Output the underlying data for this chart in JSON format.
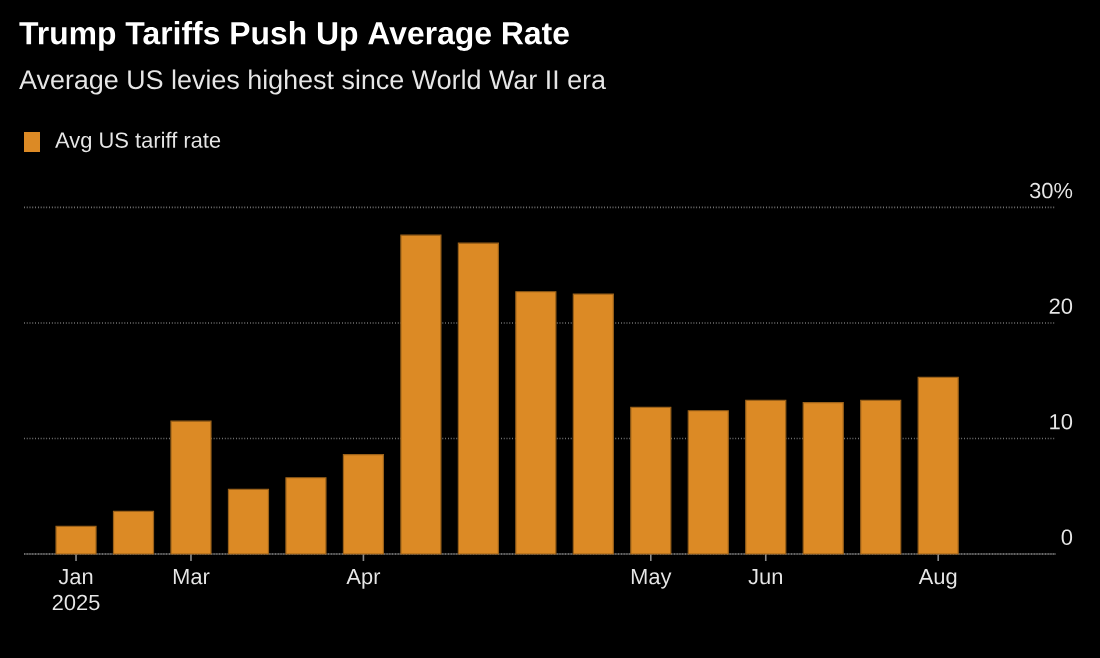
{
  "chart_data": {
    "type": "bar",
    "title": "Trump Tariffs Push Up Average Rate",
    "subtitle": "Average US levies highest since World War II era",
    "categories": [
      "Jan 2025",
      null,
      "Mar",
      null,
      null,
      "Apr",
      null,
      null,
      null,
      null,
      "May",
      null,
      "Jun",
      null,
      null,
      "Aug"
    ],
    "series": [
      {
        "name": "Avg US tariff rate",
        "color": "#dc8a25",
        "values": [
          2.4,
          3.7,
          11.5,
          5.6,
          6.6,
          8.6,
          27.6,
          26.9,
          22.7,
          22.5,
          12.7,
          12.4,
          13.3,
          13.1,
          13.3,
          15.3
        ]
      }
    ],
    "ylim": [
      0,
      30
    ],
    "yticks": [
      0,
      10,
      20,
      {
        "value": 30,
        "label": "30%"
      }
    ],
    "grid": "y",
    "legend": "top left"
  }
}
